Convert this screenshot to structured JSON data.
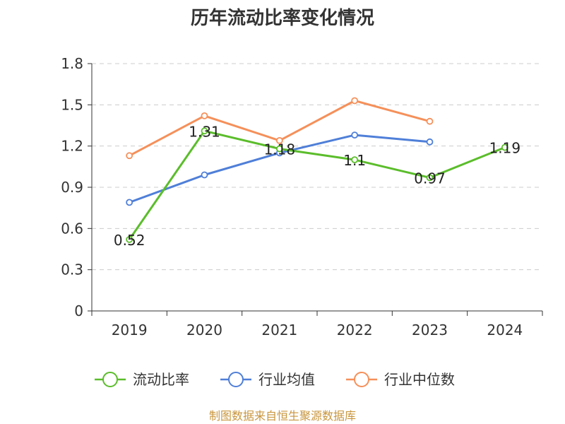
{
  "source_text": "制图数据来自恒生聚源数据库",
  "chart_data": {
    "type": "line",
    "title": "历年流动比率变化情况",
    "categories": [
      "2019",
      "2020",
      "2021",
      "2022",
      "2023",
      "2024"
    ],
    "ylim": [
      0,
      1.8
    ],
    "yticks": [
      "0",
      "0.3",
      "0.6",
      "0.9",
      "1.2",
      "1.5",
      "1.8"
    ],
    "grid": true,
    "legend_position": "bottom",
    "series": [
      {
        "name": "流动比率",
        "color": "#5bbd2b",
        "values": [
          0.52,
          1.31,
          1.18,
          1.1,
          0.97,
          1.19
        ],
        "labels": [
          "0.52",
          "1.31",
          "1.18",
          "1.1",
          "0.97",
          "1.19"
        ]
      },
      {
        "name": "行业均值",
        "color": "#4f7fd8",
        "values": [
          0.79,
          0.99,
          1.15,
          1.28,
          1.23,
          null
        ]
      },
      {
        "name": "行业中位数",
        "color": "#f5905a",
        "values": [
          1.13,
          1.42,
          1.24,
          1.53,
          1.38,
          null
        ]
      }
    ]
  }
}
